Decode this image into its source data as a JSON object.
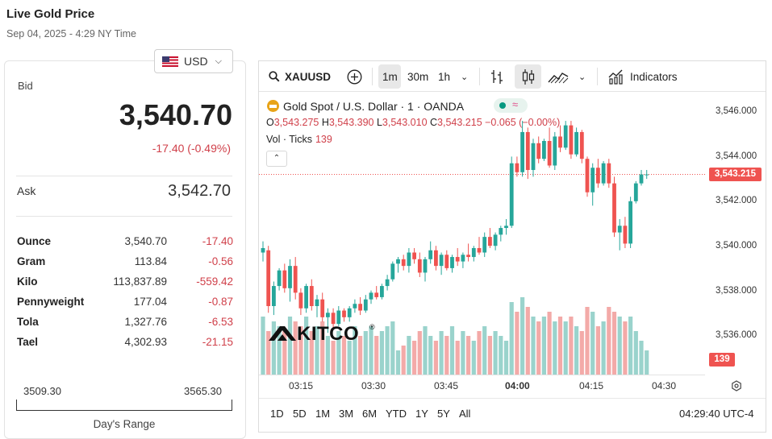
{
  "header": {
    "title": "Live Gold Price",
    "subtitle": "Sep 04, 2025 - 4:29 NY Time"
  },
  "currency": {
    "label": "USD",
    "flag_icon": "us-flag-icon"
  },
  "bid": {
    "label": "Bid",
    "value": "3,540.70",
    "change": "-17.40 (-0.49%)"
  },
  "ask": {
    "label": "Ask",
    "value": "3,542.70"
  },
  "units": [
    {
      "unit": "Ounce",
      "price": "3,540.70",
      "change": "-17.40"
    },
    {
      "unit": "Gram",
      "price": "113.84",
      "change": "-0.56"
    },
    {
      "unit": "Kilo",
      "price": "113,837.89",
      "change": "-559.42"
    },
    {
      "unit": "Pennyweight",
      "price": "177.04",
      "change": "-0.87"
    },
    {
      "unit": "Tola",
      "price": "1,327.76",
      "change": "-6.53"
    },
    {
      "unit": "Tael",
      "price": "4,302.93",
      "change": "-21.15"
    }
  ],
  "range": {
    "low": "3509.30",
    "high": "3565.30",
    "label": "Day's Range"
  },
  "toolbar": {
    "symbol": "XAUUSD",
    "intervals": [
      "1m",
      "30m",
      "1h"
    ],
    "active_interval": "1m",
    "indicators_label": "Indicators"
  },
  "legend": {
    "title": "Gold Spot / U.S. Dollar · 1 · OANDA",
    "o_label": "O",
    "o_val": "3,543.275",
    "h_label": "H",
    "h_val": "3,543.390",
    "l_label": "L",
    "l_val": "3,543.010",
    "c_label": "C",
    "c_val": "3,543.215",
    "chg": "−0.065 (−0.00%)",
    "vol_label": "Vol · Ticks",
    "vol_val": "139"
  },
  "price_axis": {
    "ticks": [
      "3,546.000",
      "3,544.000",
      "3,542.000",
      "3,540.000",
      "3,538.000",
      "3,536.000"
    ],
    "current": "3,543.215",
    "volume": "139"
  },
  "time_axis": {
    "ticks": [
      "03:15",
      "03:30",
      "03:45",
      "04:00",
      "04:15",
      "04:30"
    ]
  },
  "ranges": [
    "1D",
    "5D",
    "1M",
    "3M",
    "6M",
    "YTD",
    "1Y",
    "5Y",
    "All"
  ],
  "clock": "04:29:40 UTC-4",
  "logo": "KITCO",
  "colors": {
    "up": "#26a69a",
    "down": "#ef5350",
    "vol_up": "#9ad3cc",
    "vol_down": "#f3aaa8"
  },
  "chart_data": {
    "type": "candlestick",
    "ylim": [
      3534.7,
      3546.2
    ],
    "x_start": "03:07",
    "interval": "1m",
    "candles": [
      {
        "o": 3539.7,
        "h": 3540.2,
        "l": 3539.3,
        "c": 3539.9,
        "v": 0.6
      },
      {
        "o": 3539.8,
        "h": 3540.0,
        "l": 3537.0,
        "c": 3537.3,
        "v": 0.45
      },
      {
        "o": 3537.3,
        "h": 3538.4,
        "l": 3536.9,
        "c": 3538.2,
        "v": 0.55
      },
      {
        "o": 3538.2,
        "h": 3539.0,
        "l": 3538.0,
        "c": 3538.9,
        "v": 0.5
      },
      {
        "o": 3538.9,
        "h": 3539.2,
        "l": 3537.9,
        "c": 3538.1,
        "v": 0.45
      },
      {
        "o": 3538.1,
        "h": 3539.4,
        "l": 3537.5,
        "c": 3539.1,
        "v": 0.6
      },
      {
        "o": 3539.1,
        "h": 3539.5,
        "l": 3537.6,
        "c": 3537.9,
        "v": 0.55
      },
      {
        "o": 3537.9,
        "h": 3538.1,
        "l": 3536.9,
        "c": 3537.2,
        "v": 0.5
      },
      {
        "o": 3537.2,
        "h": 3538.3,
        "l": 3537.0,
        "c": 3538.2,
        "v": 0.6
      },
      {
        "o": 3538.2,
        "h": 3538.5,
        "l": 3537.1,
        "c": 3537.3,
        "v": 0.45
      },
      {
        "o": 3537.3,
        "h": 3537.8,
        "l": 3536.8,
        "c": 3537.6,
        "v": 0.5
      },
      {
        "o": 3537.6,
        "h": 3537.9,
        "l": 3536.6,
        "c": 3536.8,
        "v": 0.55
      },
      {
        "o": 3536.8,
        "h": 3537.2,
        "l": 3536.1,
        "c": 3537.0,
        "v": 0.4
      },
      {
        "o": 3537.0,
        "h": 3537.2,
        "l": 3536.3,
        "c": 3536.5,
        "v": 0.35
      },
      {
        "o": 3536.5,
        "h": 3537.3,
        "l": 3536.4,
        "c": 3537.1,
        "v": 0.45
      },
      {
        "o": 3537.1,
        "h": 3537.2,
        "l": 3536.6,
        "c": 3536.8,
        "v": 0.4
      },
      {
        "o": 3536.8,
        "h": 3537.3,
        "l": 3536.6,
        "c": 3537.2,
        "v": 0.35
      },
      {
        "o": 3537.2,
        "h": 3537.6,
        "l": 3537.0,
        "c": 3537.4,
        "v": 0.5
      },
      {
        "o": 3537.4,
        "h": 3537.7,
        "l": 3536.9,
        "c": 3537.1,
        "v": 0.4
      },
      {
        "o": 3537.1,
        "h": 3537.8,
        "l": 3537.0,
        "c": 3537.6,
        "v": 0.45
      },
      {
        "o": 3537.6,
        "h": 3538.0,
        "l": 3537.4,
        "c": 3537.9,
        "v": 0.5
      },
      {
        "o": 3537.9,
        "h": 3538.2,
        "l": 3537.6,
        "c": 3537.7,
        "v": 0.4
      },
      {
        "o": 3537.7,
        "h": 3538.3,
        "l": 3537.6,
        "c": 3538.2,
        "v": 0.45
      },
      {
        "o": 3538.2,
        "h": 3538.7,
        "l": 3538.0,
        "c": 3538.5,
        "v": 0.5
      },
      {
        "o": 3538.5,
        "h": 3539.3,
        "l": 3538.4,
        "c": 3539.2,
        "v": 0.55
      },
      {
        "o": 3539.2,
        "h": 3539.5,
        "l": 3538.8,
        "c": 3539.4,
        "v": 0.25
      },
      {
        "o": 3539.4,
        "h": 3539.6,
        "l": 3538.9,
        "c": 3539.1,
        "v": 0.3
      },
      {
        "o": 3539.1,
        "h": 3539.9,
        "l": 3538.8,
        "c": 3539.7,
        "v": 0.4
      },
      {
        "o": 3539.7,
        "h": 3539.9,
        "l": 3539.2,
        "c": 3539.4,
        "v": 0.35
      },
      {
        "o": 3539.4,
        "h": 3539.7,
        "l": 3538.6,
        "c": 3538.8,
        "v": 0.45
      },
      {
        "o": 3538.8,
        "h": 3539.5,
        "l": 3538.4,
        "c": 3539.4,
        "v": 0.5
      },
      {
        "o": 3539.4,
        "h": 3540.2,
        "l": 3539.2,
        "c": 3539.8,
        "v": 0.4
      },
      {
        "o": 3539.8,
        "h": 3540.0,
        "l": 3538.9,
        "c": 3539.1,
        "v": 0.35
      },
      {
        "o": 3539.1,
        "h": 3539.7,
        "l": 3538.7,
        "c": 3539.6,
        "v": 0.45
      },
      {
        "o": 3539.6,
        "h": 3539.8,
        "l": 3538.9,
        "c": 3539.0,
        "v": 0.4
      },
      {
        "o": 3539.0,
        "h": 3539.6,
        "l": 3538.8,
        "c": 3539.5,
        "v": 0.5
      },
      {
        "o": 3539.5,
        "h": 3539.9,
        "l": 3539.1,
        "c": 3539.3,
        "v": 0.35
      },
      {
        "o": 3539.3,
        "h": 3539.7,
        "l": 3539.0,
        "c": 3539.6,
        "v": 0.45
      },
      {
        "o": 3539.6,
        "h": 3540.1,
        "l": 3539.3,
        "c": 3539.5,
        "v": 0.4
      },
      {
        "o": 3539.5,
        "h": 3540.0,
        "l": 3539.3,
        "c": 3539.9,
        "v": 0.35
      },
      {
        "o": 3539.9,
        "h": 3540.4,
        "l": 3539.6,
        "c": 3539.7,
        "v": 0.45
      },
      {
        "o": 3539.7,
        "h": 3540.6,
        "l": 3539.5,
        "c": 3540.4,
        "v": 0.5
      },
      {
        "o": 3540.4,
        "h": 3540.8,
        "l": 3539.9,
        "c": 3540.0,
        "v": 0.4
      },
      {
        "o": 3540.0,
        "h": 3540.6,
        "l": 3539.8,
        "c": 3540.5,
        "v": 0.45
      },
      {
        "o": 3540.5,
        "h": 3540.9,
        "l": 3540.2,
        "c": 3540.8,
        "v": 0.4
      },
      {
        "o": 3540.8,
        "h": 3541.2,
        "l": 3540.5,
        "c": 3540.9,
        "v": 0.35
      },
      {
        "o": 3540.9,
        "h": 3544.0,
        "l": 3540.8,
        "c": 3543.7,
        "v": 0.75
      },
      {
        "o": 3543.7,
        "h": 3544.0,
        "l": 3543.1,
        "c": 3543.3,
        "v": 0.65
      },
      {
        "o": 3543.3,
        "h": 3545.6,
        "l": 3543.1,
        "c": 3545.1,
        "v": 0.8
      },
      {
        "o": 3545.1,
        "h": 3545.3,
        "l": 3543.0,
        "c": 3543.4,
        "v": 0.7
      },
      {
        "o": 3543.4,
        "h": 3544.8,
        "l": 3543.1,
        "c": 3544.6,
        "v": 0.6
      },
      {
        "o": 3544.6,
        "h": 3544.9,
        "l": 3543.7,
        "c": 3543.9,
        "v": 0.55
      },
      {
        "o": 3543.9,
        "h": 3544.8,
        "l": 3543.8,
        "c": 3544.7,
        "v": 0.6
      },
      {
        "o": 3544.7,
        "h": 3545.3,
        "l": 3543.5,
        "c": 3543.6,
        "v": 0.65
      },
      {
        "o": 3543.6,
        "h": 3545.1,
        "l": 3543.4,
        "c": 3544.9,
        "v": 0.55
      },
      {
        "o": 3544.9,
        "h": 3545.4,
        "l": 3544.2,
        "c": 3544.4,
        "v": 0.6
      },
      {
        "o": 3544.4,
        "h": 3545.6,
        "l": 3544.3,
        "c": 3545.4,
        "v": 0.55
      },
      {
        "o": 3545.4,
        "h": 3545.6,
        "l": 3543.9,
        "c": 3544.1,
        "v": 0.6
      },
      {
        "o": 3544.1,
        "h": 3545.3,
        "l": 3544.0,
        "c": 3545.1,
        "v": 0.5
      },
      {
        "o": 3545.1,
        "h": 3545.2,
        "l": 3543.7,
        "c": 3543.9,
        "v": 0.45
      },
      {
        "o": 3543.9,
        "h": 3544.0,
        "l": 3542.2,
        "c": 3542.4,
        "v": 0.7
      },
      {
        "o": 3542.4,
        "h": 3543.7,
        "l": 3541.8,
        "c": 3543.5,
        "v": 0.65
      },
      {
        "o": 3543.5,
        "h": 3543.9,
        "l": 3542.6,
        "c": 3542.8,
        "v": 0.5
      },
      {
        "o": 3542.8,
        "h": 3543.8,
        "l": 3542.7,
        "c": 3543.7,
        "v": 0.55
      },
      {
        "o": 3543.7,
        "h": 3543.9,
        "l": 3542.6,
        "c": 3542.8,
        "v": 0.7
      },
      {
        "o": 3542.8,
        "h": 3543.1,
        "l": 3540.4,
        "c": 3540.6,
        "v": 0.65
      },
      {
        "o": 3540.6,
        "h": 3541.2,
        "l": 3539.8,
        "c": 3540.9,
        "v": 0.6
      },
      {
        "o": 3540.9,
        "h": 3541.3,
        "l": 3539.9,
        "c": 3540.1,
        "v": 0.55
      },
      {
        "o": 3540.1,
        "h": 3542.2,
        "l": 3539.9,
        "c": 3542.0,
        "v": 0.6
      },
      {
        "o": 3542.0,
        "h": 3542.9,
        "l": 3541.9,
        "c": 3542.8,
        "v": 0.45
      },
      {
        "o": 3542.8,
        "h": 3543.4,
        "l": 3542.7,
        "c": 3543.2,
        "v": 0.35
      },
      {
        "o": 3543.2,
        "h": 3543.4,
        "l": 3543.0,
        "c": 3543.2,
        "v": 0.25
      }
    ]
  }
}
